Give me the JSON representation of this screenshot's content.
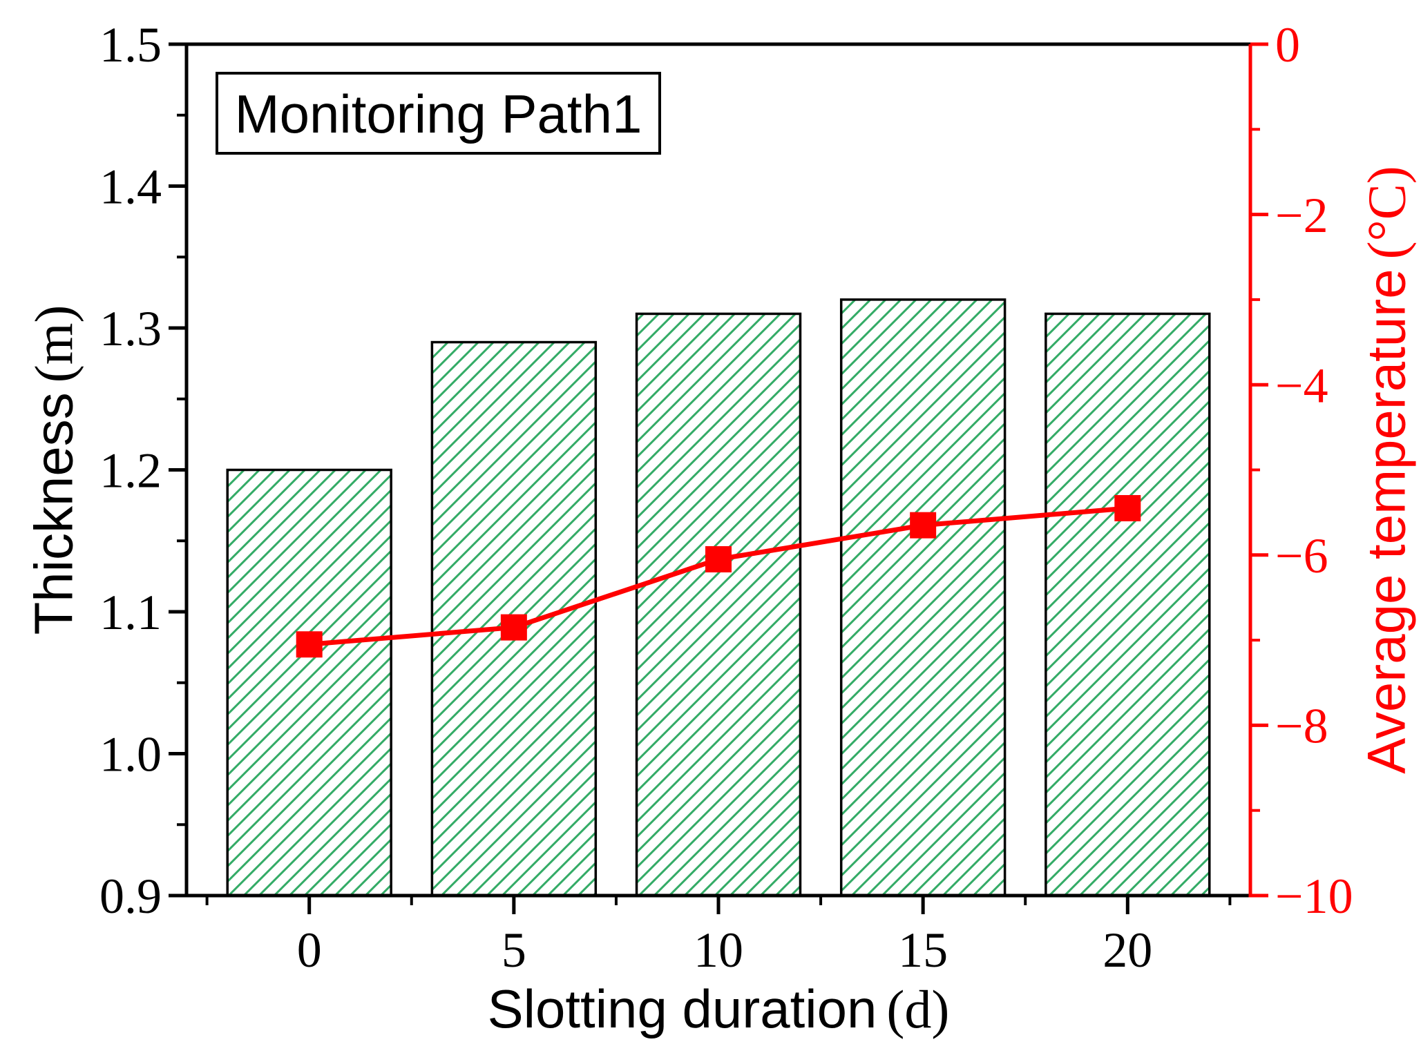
{
  "chart_data": {
    "type": "bar+line dual-axis",
    "annotation_box": "Monitoring Path1",
    "x": [
      0,
      5,
      10,
      15,
      20
    ],
    "bar_series": {
      "name": "Thickness",
      "type": "bar",
      "axis": "left",
      "values": [
        1.2,
        1.29,
        1.31,
        1.32,
        1.31
      ],
      "bar_width_x": 4,
      "hatch_color": "#33ab66",
      "edge_color": "#000000",
      "hatch_style": "forward-diagonal"
    },
    "line_series": {
      "name": "Average temperature",
      "type": "line",
      "axis": "right",
      "values": [
        -7.05,
        -6.85,
        -6.05,
        -5.65,
        -5.45
      ],
      "color": "#ff0000",
      "marker": "filled-square"
    },
    "xlabel": {
      "text": "Slotting duration",
      "unit": "(d)"
    },
    "ylabel_left": {
      "text": "Thickness",
      "unit": "(m)"
    },
    "ylabel_right": {
      "text": "Average temperature",
      "unit": "(°C)"
    },
    "xlim": [
      -3,
      23
    ],
    "ylim_left": [
      0.9,
      1.5
    ],
    "ylim_right": [
      -10,
      0
    ],
    "x_ticks": [
      {
        "v": 0,
        "label": "0"
      },
      {
        "v": 5,
        "label": "5"
      },
      {
        "v": 10,
        "label": "10"
      },
      {
        "v": 15,
        "label": "15"
      },
      {
        "v": 20,
        "label": "20"
      }
    ],
    "x_minor_ticks": [
      -2.5,
      2.5,
      7.5,
      12.5,
      17.5,
      22.5
    ],
    "y_left_ticks": [
      {
        "v": 1.5,
        "label": "1.5"
      },
      {
        "v": 1.4,
        "label": "1.4"
      },
      {
        "v": 1.3,
        "label": "1.3"
      },
      {
        "v": 1.2,
        "label": "1.2"
      },
      {
        "v": 1.1,
        "label": "1.1"
      },
      {
        "v": 1.0,
        "label": "1.0"
      },
      {
        "v": 0.9,
        "label": "0.9"
      }
    ],
    "y_left_minor_ticks": [
      1.45,
      1.35,
      1.25,
      1.15,
      1.05,
      0.95
    ],
    "y_right_ticks": [
      {
        "v": 0,
        "label": "0"
      },
      {
        "v": -2,
        "label": "−2"
      },
      {
        "v": -4,
        "label": "−4"
      },
      {
        "v": -6,
        "label": "−6"
      },
      {
        "v": -8,
        "label": "−8"
      },
      {
        "v": -10,
        "label": "−10"
      }
    ],
    "y_right_minor_ticks": [
      -1,
      -3,
      -5,
      -7,
      -9
    ],
    "axis_color_left": "#000000",
    "axis_color_right": "#ff0000",
    "grid": false,
    "legend": "none",
    "background": "#ffffff"
  }
}
